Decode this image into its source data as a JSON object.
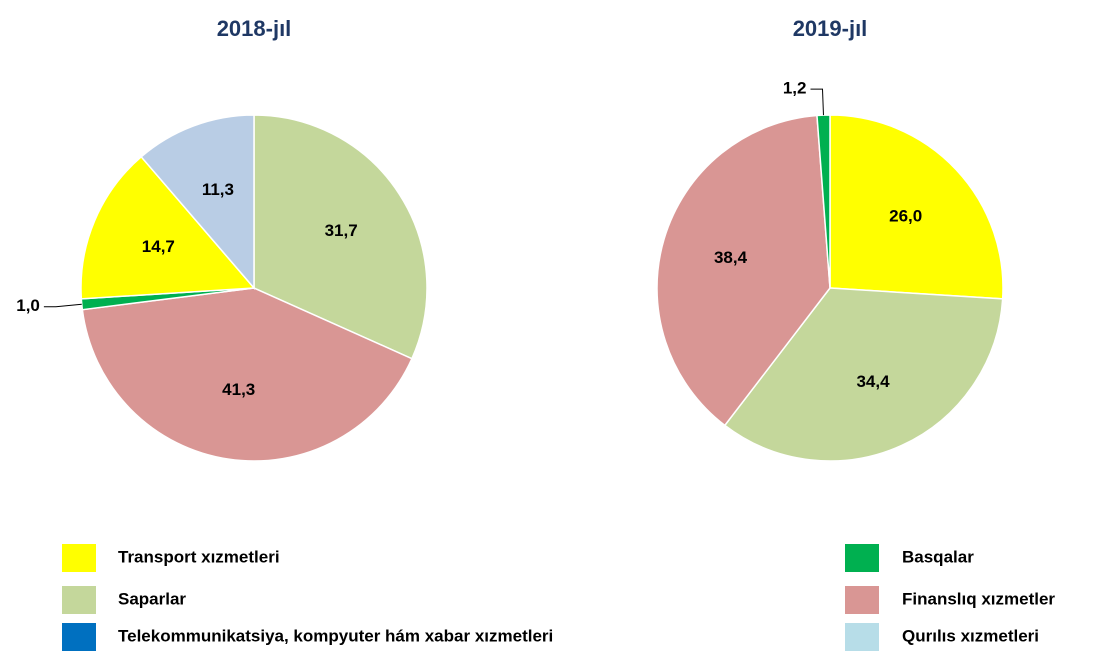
{
  "chart_data": [
    {
      "type": "pie",
      "title": "2018-jıl",
      "categories": [
        "Saparlar",
        "Finanslıq xızmetler",
        "Basqalar",
        "Transport xızmetleri",
        "Qurılıs xızmetleri"
      ],
      "values": [
        31.7,
        41.3,
        1.0,
        14.7,
        11.3
      ],
      "value_labels": [
        "31,7",
        "41,3",
        "1,0",
        "14,7",
        "11,3"
      ],
      "colors": [
        "#c4d79b",
        "#d99694",
        "#00b050",
        "#ffff00",
        "#b9cde5"
      ]
    },
    {
      "type": "pie",
      "title": "2019-jıl",
      "categories": [
        "Transport xızmetleri",
        "Saparlar",
        "Finanslıq xızmetler",
        "Basqalar"
      ],
      "values": [
        26.0,
        34.4,
        38.4,
        1.2
      ],
      "value_labels": [
        "26,0",
        "34,4",
        "38,4",
        "1,2"
      ],
      "colors": [
        "#ffff00",
        "#c4d79b",
        "#d99694",
        "#00b050"
      ]
    }
  ],
  "legend": [
    {
      "name": "Transport xızmetleri",
      "color": "#ffff00"
    },
    {
      "name": "Saparlar",
      "color": "#c4d79b"
    },
    {
      "name": "Telekommunikatsiya, kompyuter hám xabar xızmetleri",
      "color": "#0070c0"
    },
    {
      "name": "Basqalar",
      "color": "#00b050"
    },
    {
      "name": "Finanslıq xızmetler",
      "color": "#d99694"
    },
    {
      "name": "Qurılıs xızmetleri",
      "color": "#b7dde8"
    }
  ]
}
